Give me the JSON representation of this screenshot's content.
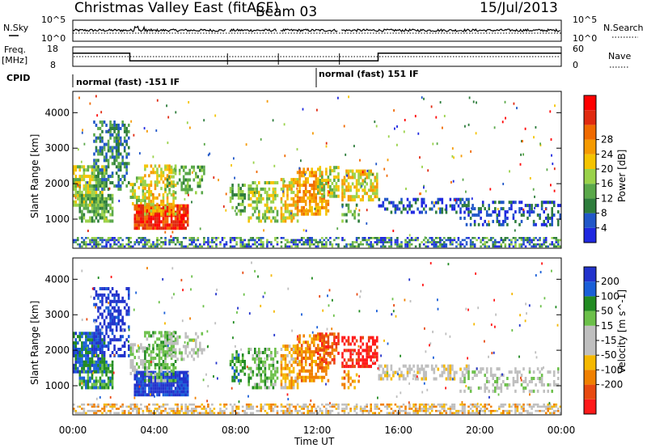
{
  "header": {
    "title": "Christmas Valley East (fitACF)",
    "beam": "Beam 03",
    "date": "15/Jul/2013"
  },
  "side_labels": {
    "nsky": "N.Sky",
    "freq_line1": "Freq.",
    "freq_line2": "[MHz]",
    "cpid": "CPID",
    "nsearch": "N.Search",
    "nave": "Nave"
  },
  "cpid_labels": [
    "normal (fast) -151 IF",
    "normal (fast) 151 IF"
  ],
  "colors": {
    "power_scale": [
      "#1f28e0",
      "#2157c8",
      "#2e7d3c",
      "#5aa84a",
      "#9ad24a",
      "#f5c400",
      "#f59a00",
      "#f06a00",
      "#e02a10",
      "#ff0000"
    ],
    "velocity_scale": [
      "#2233cc",
      "#1a5fd8",
      "#228b22",
      "#6cc04a",
      "#bfbfbf",
      "#bfbfbf",
      "#f5b800",
      "#f08000",
      "#e84a10",
      "#ff1a1a"
    ]
  },
  "chart_data": [
    {
      "type": "line",
      "name_panel": "noise",
      "ylabel_left": "N.Sky",
      "ylabel_right": "N.Search",
      "left_ticks": [
        "10^5",
        "10^0"
      ],
      "right_ticks": [
        "10^5",
        "10^0"
      ]
    },
    {
      "type": "line",
      "name_panel": "frequency",
      "ylabel_left": "Freq. [MHz]",
      "ylabel_right": "Nave",
      "left_ticks": [
        "18",
        "8"
      ],
      "right_ticks": [
        "60",
        "0"
      ],
      "ylim_left": [
        8,
        18
      ],
      "ylim_right": [
        0,
        60
      ],
      "freq_segments": [
        {
          "x0": 0.0,
          "x1": 2.8,
          "value": 14.8
        },
        {
          "x0": 2.8,
          "x1": 15.0,
          "value": 10.8
        },
        {
          "x0": 15.0,
          "x1": 24.0,
          "value": 14.8
        }
      ],
      "nave_value": 30,
      "gaps": [
        7.6,
        10.1,
        13.1
      ]
    },
    {
      "type": "heatmap",
      "name_panel": "power",
      "xlabel": "",
      "ylabel": "Slant Range [km]",
      "xlim": [
        0,
        24
      ],
      "ylim": [
        180,
        4600
      ],
      "yticks": [
        "1000",
        "2000",
        "3000",
        "4000"
      ],
      "ytick_values": [
        1000,
        2000,
        3000,
        4000
      ],
      "colorbar_label": "Power [dB]",
      "colorbar_ticks": [
        "4",
        "8",
        "12",
        "16",
        "20",
        "24",
        "28"
      ],
      "colorbar_range": [
        0,
        30
      ]
    },
    {
      "type": "heatmap",
      "name_panel": "velocity",
      "xlabel": "Time UT",
      "ylabel": "Slant Range [km]",
      "xlim": [
        0,
        24
      ],
      "ylim": [
        180,
        4600
      ],
      "xticks": [
        "00:00",
        "04:00",
        "08:00",
        "12:00",
        "16:00",
        "20:00",
        "00:00"
      ],
      "xtick_values": [
        0,
        4,
        8,
        12,
        16,
        20,
        24
      ],
      "yticks": [
        "1000",
        "2000",
        "3000",
        "4000"
      ],
      "ytick_values": [
        1000,
        2000,
        3000,
        4000
      ],
      "colorbar_label": "Velocity [m s^-1]",
      "colorbar_ticks": [
        "200",
        "100",
        "50",
        "15",
        "-15",
        "-50",
        "-100",
        "-200"
      ]
    }
  ]
}
